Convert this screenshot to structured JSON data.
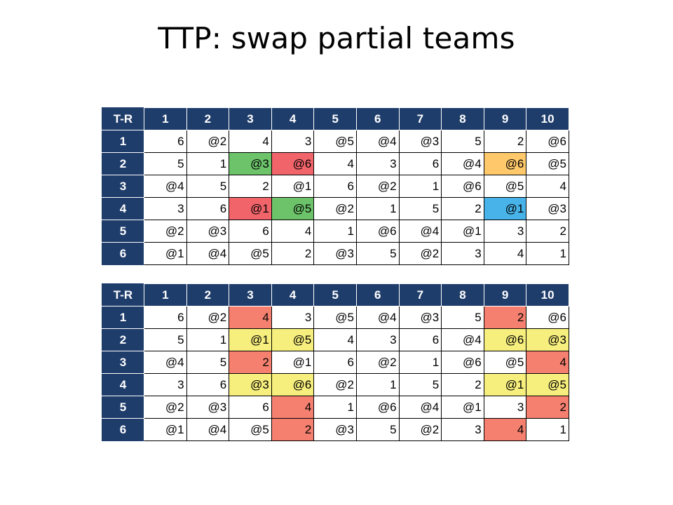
{
  "title": "TTP: swap partial teams",
  "colors": {
    "header_bg": "#1f3d6b",
    "green": "#6cc36a",
    "red": "#f0646a",
    "orange": "#ffc96b",
    "blue": "#47b3e8",
    "yellow": "#f6ee7d",
    "salmon": "#f5806f"
  },
  "tables": [
    {
      "corner": "T-R",
      "columns": [
        "1",
        "2",
        "3",
        "4",
        "5",
        "6",
        "7",
        "8",
        "9",
        "10"
      ],
      "rows": [
        {
          "label": "1",
          "cells": [
            {
              "v": "6"
            },
            {
              "v": "@2"
            },
            {
              "v": "4"
            },
            {
              "v": "3"
            },
            {
              "v": "@5"
            },
            {
              "v": "@4"
            },
            {
              "v": "@3"
            },
            {
              "v": "5"
            },
            {
              "v": "2"
            },
            {
              "v": "@6"
            }
          ]
        },
        {
          "label": "2",
          "cells": [
            {
              "v": "5"
            },
            {
              "v": "1"
            },
            {
              "v": "@3",
              "c": "green"
            },
            {
              "v": "@6",
              "c": "red"
            },
            {
              "v": "4"
            },
            {
              "v": "3"
            },
            {
              "v": "6"
            },
            {
              "v": "@4"
            },
            {
              "v": "@6",
              "c": "orange"
            },
            {
              "v": "@5"
            }
          ]
        },
        {
          "label": "3",
          "cells": [
            {
              "v": "@4"
            },
            {
              "v": "5"
            },
            {
              "v": "2"
            },
            {
              "v": "@1"
            },
            {
              "v": "6"
            },
            {
              "v": "@2"
            },
            {
              "v": "1"
            },
            {
              "v": "@6"
            },
            {
              "v": "@5"
            },
            {
              "v": "4"
            }
          ]
        },
        {
          "label": "4",
          "cells": [
            {
              "v": "3"
            },
            {
              "v": "6"
            },
            {
              "v": "@1",
              "c": "red"
            },
            {
              "v": "@5",
              "c": "green"
            },
            {
              "v": "@2"
            },
            {
              "v": "1"
            },
            {
              "v": "5"
            },
            {
              "v": "2"
            },
            {
              "v": "@1",
              "c": "blue"
            },
            {
              "v": "@3"
            }
          ]
        },
        {
          "label": "5",
          "cells": [
            {
              "v": "@2"
            },
            {
              "v": "@3"
            },
            {
              "v": "6"
            },
            {
              "v": "4"
            },
            {
              "v": "1"
            },
            {
              "v": "@6"
            },
            {
              "v": "@4"
            },
            {
              "v": "@1"
            },
            {
              "v": "3"
            },
            {
              "v": "2"
            }
          ]
        },
        {
          "label": "6",
          "cells": [
            {
              "v": "@1"
            },
            {
              "v": "@4"
            },
            {
              "v": "@5"
            },
            {
              "v": "2"
            },
            {
              "v": "@3"
            },
            {
              "v": "5"
            },
            {
              "v": "@2"
            },
            {
              "v": "3"
            },
            {
              "v": "4"
            },
            {
              "v": "1"
            }
          ]
        }
      ]
    },
    {
      "corner": "T-R",
      "columns": [
        "1",
        "2",
        "3",
        "4",
        "5",
        "6",
        "7",
        "8",
        "9",
        "10"
      ],
      "rows": [
        {
          "label": "1",
          "cells": [
            {
              "v": "6"
            },
            {
              "v": "@2"
            },
            {
              "v": "4",
              "c": "salmon"
            },
            {
              "v": "3"
            },
            {
              "v": "@5"
            },
            {
              "v": "@4"
            },
            {
              "v": "@3"
            },
            {
              "v": "5"
            },
            {
              "v": "2",
              "c": "salmon"
            },
            {
              "v": "@6"
            }
          ]
        },
        {
          "label": "2",
          "cells": [
            {
              "v": "5"
            },
            {
              "v": "1"
            },
            {
              "v": "@1",
              "c": "yellow"
            },
            {
              "v": "@5",
              "c": "yellow"
            },
            {
              "v": "4"
            },
            {
              "v": "3"
            },
            {
              "v": "6"
            },
            {
              "v": "@4"
            },
            {
              "v": "@6",
              "c": "yellow"
            },
            {
              "v": "@3",
              "c": "yellow"
            }
          ]
        },
        {
          "label": "3",
          "cells": [
            {
              "v": "@4"
            },
            {
              "v": "5"
            },
            {
              "v": "2",
              "c": "salmon"
            },
            {
              "v": "@1"
            },
            {
              "v": "6"
            },
            {
              "v": "@2"
            },
            {
              "v": "1"
            },
            {
              "v": "@6"
            },
            {
              "v": "@5"
            },
            {
              "v": "4",
              "c": "salmon"
            }
          ]
        },
        {
          "label": "4",
          "cells": [
            {
              "v": "3"
            },
            {
              "v": "6"
            },
            {
              "v": "@3",
              "c": "yellow"
            },
            {
              "v": "@6",
              "c": "yellow"
            },
            {
              "v": "@2"
            },
            {
              "v": "1"
            },
            {
              "v": "5"
            },
            {
              "v": "2"
            },
            {
              "v": "@1",
              "c": "yellow"
            },
            {
              "v": "@5",
              "c": "yellow"
            }
          ]
        },
        {
          "label": "5",
          "cells": [
            {
              "v": "@2"
            },
            {
              "v": "@3"
            },
            {
              "v": "6"
            },
            {
              "v": "4",
              "c": "salmon"
            },
            {
              "v": "1"
            },
            {
              "v": "@6"
            },
            {
              "v": "@4"
            },
            {
              "v": "@1"
            },
            {
              "v": "3"
            },
            {
              "v": "2",
              "c": "salmon"
            }
          ]
        },
        {
          "label": "6",
          "cells": [
            {
              "v": "@1"
            },
            {
              "v": "@4"
            },
            {
              "v": "@5"
            },
            {
              "v": "2",
              "c": "salmon"
            },
            {
              "v": "@3"
            },
            {
              "v": "5"
            },
            {
              "v": "@2"
            },
            {
              "v": "3"
            },
            {
              "v": "4",
              "c": "salmon"
            },
            {
              "v": "1"
            }
          ]
        }
      ]
    }
  ]
}
